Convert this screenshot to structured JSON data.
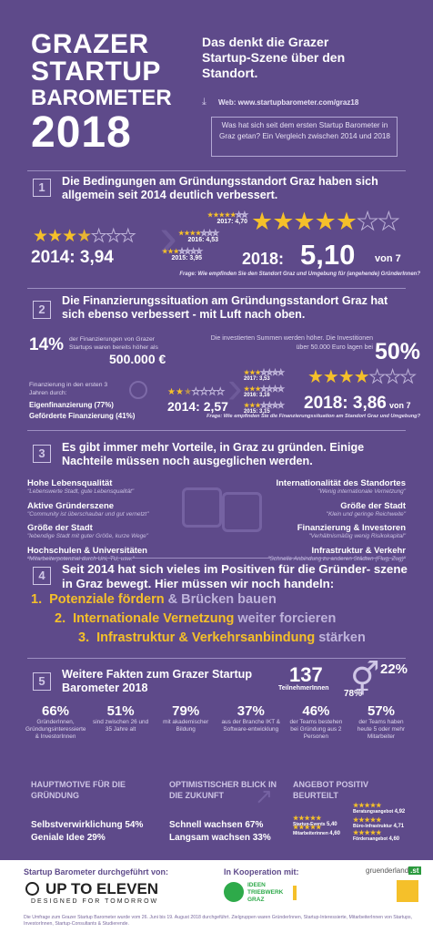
{
  "header": {
    "title_lines": [
      "GRAZER",
      "STARTUP",
      "BAROMETER",
      "2018"
    ],
    "subtitle": "Das denkt die Grazer Startup-Szene über den Standort.",
    "web": "Web: www.startupbarometer.com/graz18",
    "question_box": "Was hat sich seit dem ersten Startup Barometer in Graz getan? Ein Vergleich zwischen 2014 und 2018"
  },
  "section1": {
    "number": "1",
    "heading": "Die Bedingungen am Gründungsstandort Graz haben sich allgemein seit 2014 deutlich verbessert.",
    "label_2014": "2014: 3,94",
    "history": [
      "2017: 4,70",
      "2016: 4,53",
      "2015: 3,95"
    ],
    "label_2018": "2018:",
    "value_2018": "5,10",
    "of7": "von 7",
    "question": "Frage: Wie empfinden Sie den Standort Graz und Umgebung für (angehende) GründerInnen?",
    "rating_2014": 3.94,
    "rating_2018": 5.1
  },
  "section2": {
    "number": "2",
    "heading": "Die Finanzierungssituation am Gründungsstandort Graz hat sich ebenso verbessert - mit Luft nach oben.",
    "pct14": "14%",
    "pct14_text": "der Finanzierungen von Grazer Startups waren bereits höher als",
    "amount": "500.000 €",
    "invest_text": "Die investierten Summen werden höher. Die Investitionen über 50.000 Euro lagen bei",
    "pct50": "50%",
    "first_years": "Finanzierung in den ersten 3 Jahren durch:",
    "eigen": "Eigenfinanzierung (77%)",
    "gefoerdert": "Geförderte Finanzierung (41%)",
    "label_2014": "2014: 2,57",
    "history": [
      "2017: 3,53",
      "2016: 3,16",
      "2015: 3,15"
    ],
    "label_2018": "2018: 3,86",
    "of7": "von 7",
    "question": "Frage: Wie empfinden Sie die Finanzierungssituation am Standort Graz und Umgebung?",
    "rating_2014": 2.57,
    "rating_2018": 3.86
  },
  "section3": {
    "number": "3",
    "heading": "Es gibt immer mehr Vorteile, in Graz zu gründen. Einige Nachteile müssen noch ausgeglichen werden.",
    "pros": [
      {
        "t": "Hohe Lebensqualität",
        "s": "\"Lebenswerte Stadt, gute Lebensqualität\""
      },
      {
        "t": "Aktive Gründerszene",
        "s": "\"Community ist überschaubar und gut vernetzt\""
      },
      {
        "t": "Größe der Stadt",
        "s": "\"lebendige Stadt mit guter Größe, kurze Wege\""
      },
      {
        "t": "Hochschulen & Universitäten",
        "s": "\"Mitarbeiterpotenzial durch Uni, TU, usw.\""
      }
    ],
    "cons": [
      {
        "t": "Internationalität des Standortes",
        "s": "\"Wenig internationale Vernetzung\""
      },
      {
        "t": "Größe der Stadt",
        "s": "\"Klein und geringe Reichweite\""
      },
      {
        "t": "Finanzierung & Investoren",
        "s": "\"Verhältnismäßig wenig Risikokapital\""
      },
      {
        "t": "Infrastruktur & Verkehr",
        "s": "\"Schnelle Anbindung zu anderen Städten (Flug, Zug)\""
      }
    ]
  },
  "section4": {
    "number": "4",
    "heading": "Seit 2014 hat sich vieles im Positiven für die Gründer- szene in Graz bewegt. Hier müssen wir noch handeln:",
    "items": [
      {
        "n": "1.",
        "hl": "Potenziale fördern",
        "rest": " & Brücken bauen"
      },
      {
        "n": "2.",
        "hl": "Internationale Vernetzung",
        "rest": " weiter forcieren"
      },
      {
        "n": "3.",
        "hl": "Infrastruktur & Verkehrsanbindung",
        "rest": " stärken"
      }
    ]
  },
  "section5": {
    "number": "5",
    "heading": "Weitere Fakten zum Grazer Startup Barometer 2018",
    "participants": "137",
    "participants_label": "TeilnehmerInnen",
    "female": "22%",
    "male": "78%",
    "stats": [
      {
        "n": "66%",
        "t": "GründerInnen, Gründungsinteressierte & InvestorInnen"
      },
      {
        "n": "51%",
        "t": "sind zwischen 26 und 35 Jahre alt"
      },
      {
        "n": "79%",
        "t": "mit akademischer Bildung"
      },
      {
        "n": "37%",
        "t": "aus der Branche IKT & Software-entwicklung"
      },
      {
        "n": "46%",
        "t": "der Teams bestehen bei Gründung aus 2 Personen"
      },
      {
        "n": "57%",
        "t": "der Teams haben heute 5 oder mehr Mitarbeiter"
      }
    ],
    "motive_title": "HAUPTMOTIVE FÜR DIE GRÜNDUNG",
    "motive": [
      {
        "l": "Selbstverwirklichung",
        "v": "54%"
      },
      {
        "l": "Geniale Idee",
        "v": "29%"
      }
    ],
    "future_title": "OPTIMISTISCHER BLICK IN DIE ZUKUNFT",
    "future": [
      {
        "l": "Schnell wachsen",
        "v": "67%"
      },
      {
        "l": "Langsam wachsen",
        "v": "33%"
      }
    ],
    "offer_title": "ANGEBOT POSITIV BEURTEILT",
    "offers": [
      {
        "l": "Beratungsangebot",
        "v": "4,92"
      },
      {
        "l": "Startup-Events",
        "v": "5,40"
      },
      {
        "l": "Büro-Infrastruktur",
        "v": "4,71"
      },
      {
        "l": "Fördersangebot",
        "v": "4,60"
      },
      {
        "l": "Mitarbeiterinnen",
        "v": "4,60"
      }
    ]
  },
  "footer": {
    "by": "Startup Barometer durchgeführt von:",
    "logo": "UP TO ELEVEN",
    "logo_sub": "DESIGNED FOR TOMORROW",
    "coop": "In Kooperation mit:",
    "gl": "gruenderland",
    "gl_badge": ".st",
    "ideen": "IDEEN TRIEBWERK GRAZ",
    "note": "Die Umfrage zum Grazer Startup Barometer wurde vom 26. Juni bis 19. August 2018 durchgeführt. Zielgruppen waren GründerInnen, Startup-Interessierte, MitarbeiterInnen von Startups, InvestorInnen, Startup-Consultants & Studierende."
  },
  "colors": {
    "bg": "#5e4a8a",
    "accent": "#f5c02a",
    "text": "#ffffff"
  }
}
